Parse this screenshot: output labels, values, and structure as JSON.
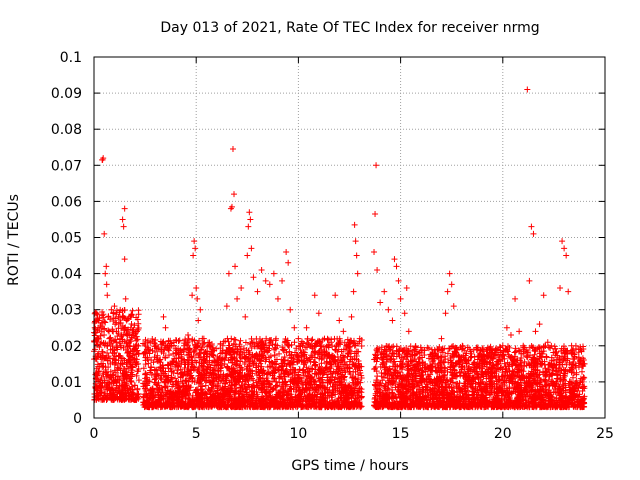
{
  "chart_data": {
    "type": "scatter",
    "title": "Day 013 of 2021, Rate Of TEC Index for receiver nrmg",
    "xlabel": "GPS time / hours",
    "ylabel": "ROTI / TECUs",
    "xlim": [
      0,
      25
    ],
    "ylim": [
      0,
      0.1
    ],
    "x_ticks": [
      0,
      5,
      10,
      15,
      20,
      25
    ],
    "x_tick_labels": [
      "0",
      "5",
      "10",
      "15",
      "20",
      "25"
    ],
    "y_ticks": [
      0,
      0.01,
      0.02,
      0.03,
      0.04,
      0.05,
      0.06,
      0.07,
      0.08,
      0.09,
      0.1
    ],
    "y_tick_labels": [
      "0",
      "0.01",
      "0.02",
      "0.03",
      "0.04",
      "0.05",
      "0.06",
      "0.07",
      "0.08",
      "0.09",
      "0.1"
    ],
    "grid": true,
    "marker": "+",
    "color": "#ff0000",
    "series": [
      {
        "name": "ROTI",
        "points": [
          [
            0.05,
            0.019
          ],
          [
            0.1,
            0.011
          ],
          [
            0.15,
            0.008
          ],
          [
            0.2,
            0.025
          ],
          [
            0.25,
            0.013
          ],
          [
            0.3,
            0.009
          ],
          [
            0.35,
            0.021
          ],
          [
            0.4,
            0.0715
          ],
          [
            0.42,
            0.0715
          ],
          [
            0.45,
            0.072
          ],
          [
            0.5,
            0.051
          ],
          [
            0.55,
            0.04
          ],
          [
            0.6,
            0.042
          ],
          [
            0.62,
            0.037
          ],
          [
            0.65,
            0.034
          ],
          [
            0.7,
            0.028
          ],
          [
            0.75,
            0.022
          ],
          [
            0.8,
            0.015
          ],
          [
            0.85,
            0.03
          ],
          [
            0.9,
            0.018
          ],
          [
            0.95,
            0.012
          ],
          [
            1.0,
            0.031
          ],
          [
            1.1,
            0.024
          ],
          [
            1.2,
            0.016
          ],
          [
            1.3,
            0.02
          ],
          [
            1.4,
            0.055
          ],
          [
            1.45,
            0.053
          ],
          [
            1.5,
            0.058
          ],
          [
            1.5,
            0.044
          ],
          [
            1.55,
            0.033
          ],
          [
            1.6,
            0.027
          ],
          [
            1.7,
            0.02
          ],
          [
            1.8,
            0.025
          ],
          [
            1.9,
            0.014
          ],
          [
            2.0,
            0.009
          ],
          [
            2.5,
            0.012
          ],
          [
            2.6,
            0.009
          ],
          [
            2.8,
            0.014
          ],
          [
            3.0,
            0.011
          ],
          [
            3.2,
            0.016
          ],
          [
            3.4,
            0.028
          ],
          [
            3.5,
            0.025
          ],
          [
            3.6,
            0.02
          ],
          [
            3.8,
            0.013
          ],
          [
            4.0,
            0.018
          ],
          [
            4.2,
            0.015
          ],
          [
            4.4,
            0.019
          ],
          [
            4.6,
            0.023
          ],
          [
            4.8,
            0.034
          ],
          [
            4.85,
            0.045
          ],
          [
            4.9,
            0.049
          ],
          [
            4.95,
            0.047
          ],
          [
            5.0,
            0.036
          ],
          [
            5.05,
            0.033
          ],
          [
            5.1,
            0.027
          ],
          [
            5.2,
            0.03
          ],
          [
            5.3,
            0.022
          ],
          [
            5.5,
            0.017
          ],
          [
            5.7,
            0.014
          ],
          [
            5.9,
            0.016
          ],
          [
            6.1,
            0.012
          ],
          [
            6.3,
            0.02
          ],
          [
            6.5,
            0.031
          ],
          [
            6.6,
            0.04
          ],
          [
            6.7,
            0.058
          ],
          [
            6.75,
            0.0585
          ],
          [
            6.8,
            0.0745
          ],
          [
            6.85,
            0.062
          ],
          [
            6.9,
            0.042
          ],
          [
            7.0,
            0.033
          ],
          [
            7.2,
            0.036
          ],
          [
            7.4,
            0.028
          ],
          [
            7.5,
            0.045
          ],
          [
            7.55,
            0.053
          ],
          [
            7.6,
            0.057
          ],
          [
            7.65,
            0.055
          ],
          [
            7.7,
            0.047
          ],
          [
            7.8,
            0.039
          ],
          [
            8.0,
            0.035
          ],
          [
            8.2,
            0.041
          ],
          [
            8.4,
            0.038
          ],
          [
            8.6,
            0.037
          ],
          [
            8.8,
            0.04
          ],
          [
            9.0,
            0.033
          ],
          [
            9.2,
            0.038
          ],
          [
            9.4,
            0.046
          ],
          [
            9.5,
            0.043
          ],
          [
            9.6,
            0.03
          ],
          [
            9.8,
            0.025
          ],
          [
            10.0,
            0.022
          ],
          [
            10.2,
            0.02
          ],
          [
            10.4,
            0.025
          ],
          [
            10.6,
            0.02
          ],
          [
            10.8,
            0.034
          ],
          [
            11.0,
            0.029
          ],
          [
            11.2,
            0.018
          ],
          [
            11.4,
            0.015
          ],
          [
            11.6,
            0.021
          ],
          [
            11.8,
            0.034
          ],
          [
            12.0,
            0.027
          ],
          [
            12.2,
            0.024
          ],
          [
            12.4,
            0.017
          ],
          [
            12.6,
            0.028
          ],
          [
            12.7,
            0.035
          ],
          [
            12.75,
            0.0535
          ],
          [
            12.8,
            0.049
          ],
          [
            12.85,
            0.045
          ],
          [
            12.9,
            0.04
          ],
          [
            13.0,
            0.022
          ],
          [
            13.7,
            0.046
          ],
          [
            13.75,
            0.0565
          ],
          [
            13.8,
            0.07
          ],
          [
            13.85,
            0.041
          ],
          [
            14.0,
            0.032
          ],
          [
            14.2,
            0.035
          ],
          [
            14.4,
            0.03
          ],
          [
            14.6,
            0.027
          ],
          [
            14.7,
            0.044
          ],
          [
            14.8,
            0.042
          ],
          [
            14.9,
            0.038
          ],
          [
            15.0,
            0.033
          ],
          [
            15.2,
            0.029
          ],
          [
            15.3,
            0.036
          ],
          [
            15.4,
            0.024
          ],
          [
            15.6,
            0.016
          ],
          [
            15.8,
            0.013
          ],
          [
            16.0,
            0.018
          ],
          [
            16.2,
            0.015
          ],
          [
            16.4,
            0.011
          ],
          [
            16.6,
            0.017
          ],
          [
            16.8,
            0.019
          ],
          [
            17.0,
            0.022
          ],
          [
            17.2,
            0.029
          ],
          [
            17.3,
            0.035
          ],
          [
            17.4,
            0.04
          ],
          [
            17.5,
            0.037
          ],
          [
            17.6,
            0.031
          ],
          [
            17.8,
            0.015
          ],
          [
            18.0,
            0.019
          ],
          [
            18.2,
            0.016
          ],
          [
            18.4,
            0.013
          ],
          [
            18.6,
            0.014
          ],
          [
            18.8,
            0.011
          ],
          [
            19.0,
            0.01
          ],
          [
            19.2,
            0.012
          ],
          [
            19.4,
            0.013
          ],
          [
            19.6,
            0.018
          ],
          [
            19.8,
            0.016
          ],
          [
            20.0,
            0.02
          ],
          [
            20.2,
            0.025
          ],
          [
            20.4,
            0.023
          ],
          [
            20.6,
            0.033
          ],
          [
            20.8,
            0.024
          ],
          [
            21.0,
            0.02
          ],
          [
            21.2,
            0.091
          ],
          [
            21.3,
            0.038
          ],
          [
            21.4,
            0.053
          ],
          [
            21.5,
            0.051
          ],
          [
            21.6,
            0.024
          ],
          [
            21.8,
            0.026
          ],
          [
            22.0,
            0.034
          ],
          [
            22.2,
            0.021
          ],
          [
            22.4,
            0.016
          ],
          [
            22.6,
            0.018
          ],
          [
            22.8,
            0.036
          ],
          [
            22.9,
            0.049
          ],
          [
            23.0,
            0.047
          ],
          [
            23.1,
            0.045
          ],
          [
            23.2,
            0.035
          ],
          [
            23.4,
            0.018
          ],
          [
            23.6,
            0.012
          ],
          [
            23.8,
            0.019
          ],
          [
            23.9,
            0.01
          ],
          [
            24.0,
            0.015
          ]
        ]
      }
    ],
    "density_band": {
      "description": "dense low-level cluster",
      "segments": [
        {
          "x_start": 0.0,
          "x_end": 2.2,
          "y_min": 0.005,
          "y_max": 0.03
        },
        {
          "x_start": 2.4,
          "x_end": 13.1,
          "y_min": 0.003,
          "y_max": 0.022
        },
        {
          "x_start": 13.7,
          "x_end": 24.0,
          "y_min": 0.003,
          "y_max": 0.02
        }
      ]
    }
  }
}
